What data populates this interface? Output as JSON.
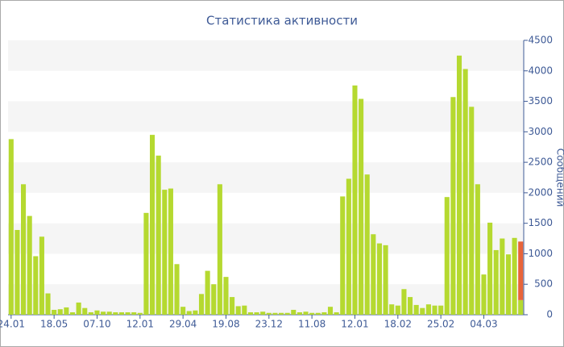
{
  "chart_data": {
    "type": "bar",
    "title": "Статистика активности",
    "y_label": "Сообщений",
    "categories": [
      "24.01",
      null,
      null,
      null,
      null,
      null,
      null,
      "18.05",
      null,
      null,
      null,
      null,
      null,
      null,
      "07.10",
      null,
      null,
      null,
      null,
      null,
      null,
      "12.01",
      null,
      null,
      null,
      null,
      null,
      null,
      "29.04",
      null,
      null,
      null,
      null,
      null,
      null,
      "19.08",
      null,
      null,
      null,
      null,
      null,
      null,
      "23.12",
      null,
      null,
      null,
      null,
      null,
      null,
      "11.08",
      null,
      null,
      null,
      null,
      null,
      null,
      "12.01",
      null,
      null,
      null,
      null,
      null,
      null,
      "18.02",
      null,
      null,
      null,
      null,
      null,
      null,
      "25.02",
      null,
      null,
      null,
      null,
      null,
      null,
      "04.03",
      null,
      null,
      null,
      null,
      null,
      null
    ],
    "series": [
      {
        "color": "#b5d930",
        "values": [
          2880,
          1390,
          2140,
          1620,
          960,
          1280,
          350,
          80,
          90,
          120,
          40,
          200,
          110,
          40,
          70,
          50,
          50,
          40,
          40,
          40,
          40,
          30,
          1670,
          2950,
          2610,
          2050,
          2070,
          830,
          130,
          60,
          70,
          340,
          720,
          500,
          2140,
          620,
          290,
          140,
          150,
          40,
          40,
          50,
          30,
          30,
          30,
          30,
          80,
          40,
          50,
          30,
          30,
          40,
          130,
          40,
          1940,
          2230,
          3760,
          3540,
          2300,
          1320,
          1170,
          1140,
          170,
          150,
          420,
          290,
          160,
          110,
          170,
          150,
          150,
          1930,
          3570,
          4250,
          4030,
          3410,
          2140,
          660,
          1510,
          1060,
          1250,
          990,
          1260,
          240
        ]
      },
      {
        "color": "#e8643a",
        "values": [
          null,
          null,
          null,
          null,
          null,
          null,
          null,
          null,
          null,
          null,
          null,
          null,
          null,
          null,
          null,
          null,
          null,
          null,
          null,
          null,
          null,
          null,
          null,
          null,
          null,
          null,
          null,
          null,
          null,
          null,
          null,
          null,
          null,
          null,
          null,
          null,
          null,
          null,
          null,
          null,
          null,
          null,
          null,
          null,
          null,
          null,
          null,
          null,
          null,
          null,
          null,
          null,
          null,
          null,
          null,
          null,
          null,
          null,
          null,
          null,
          null,
          null,
          null,
          null,
          null,
          null,
          null,
          null,
          null,
          null,
          null,
          null,
          null,
          null,
          null,
          null,
          null,
          null,
          null,
          null,
          null,
          null,
          null,
          960
        ]
      }
    ],
    "stacked": true,
    "ylim": [
      0,
      4500
    ],
    "yticks": [
      0,
      500,
      1000,
      1500,
      2000,
      2500,
      3000,
      3500,
      4000,
      4500
    ],
    "grid": "bands"
  }
}
